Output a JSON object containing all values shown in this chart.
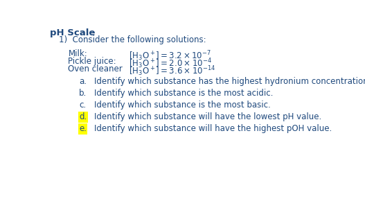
{
  "title": "pH Scale",
  "intro": "1)  Consider the following solutions:",
  "substances": [
    {
      "name": "Milk:",
      "formula_plain": "[H",
      "formula_sub": "3",
      "formula_mid": "O",
      "formula_sup": "+",
      "formula_end": "] = 3.2 x 10",
      "exp": "-7"
    },
    {
      "name": "Pickle juice:",
      "formula_plain": "[H",
      "formula_sub": "3",
      "formula_mid": "O",
      "formula_sup": "+",
      "formula_end": "] = 2.0 x 10",
      "exp": "-4"
    },
    {
      "name": "Oven cleaner",
      "formula_plain": "[H",
      "formula_sub": "3",
      "formula_mid": "O",
      "formula_sup": "+",
      "formula_end": "] = 3.6 x 10",
      "exp": "-14"
    }
  ],
  "questions": [
    {
      "label": "a.",
      "text": "Identify which substance has the highest hydronium concentration.",
      "highlight": false
    },
    {
      "label": "b.",
      "text": "Identify which substance is the most acidic.",
      "highlight": false
    },
    {
      "label": "c.",
      "text": "Identify which substance is the most basic.",
      "highlight": false
    },
    {
      "label": "d.",
      "text": "Identify which substance will have the lowest pH value.",
      "highlight": true
    },
    {
      "label": "e.",
      "text": "Identify which substance will have the highest pOH value.",
      "highlight": true
    }
  ],
  "highlight_color": "#FFFF00",
  "text_color": "#1F497D",
  "bg_color": "#FFFFFF",
  "font_size": 8.5,
  "title_font_size": 9.5
}
